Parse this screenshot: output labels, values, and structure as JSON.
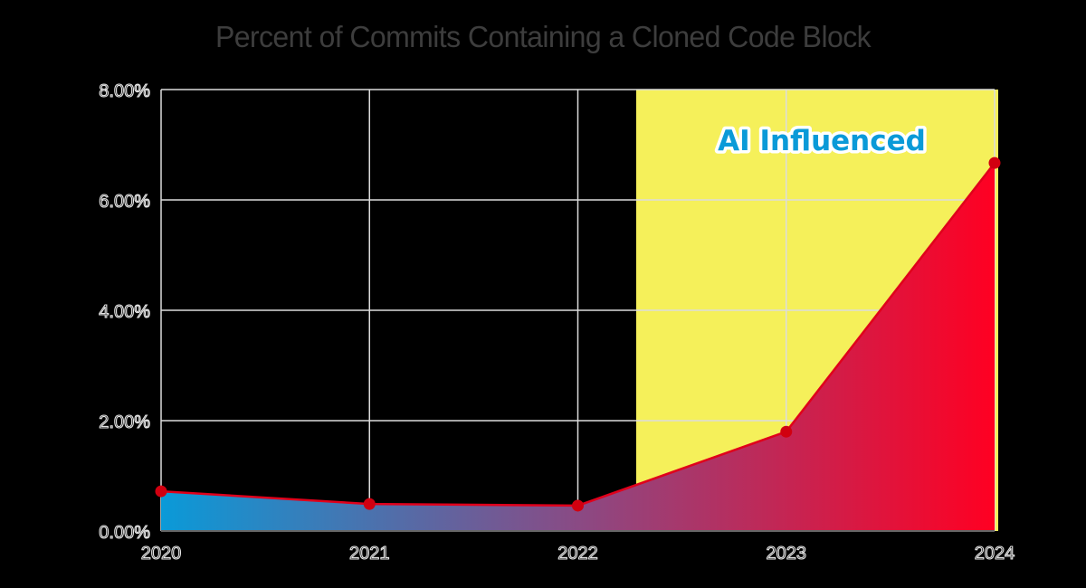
{
  "chart_data": {
    "type": "area",
    "title": "Percent of Commits Containing a Cloned Code Block",
    "xlabel": "",
    "ylabel": "",
    "categories": [
      "2020",
      "2021",
      "2022",
      "2023",
      "2024"
    ],
    "series": [
      {
        "name": "Percent of Commits Containing a Cloned Code Block",
        "values": [
          0.72,
          0.49,
          0.46,
          1.8,
          6.67
        ]
      }
    ],
    "ylim": [
      0,
      8
    ],
    "yticks": [
      "0.00%",
      "2.00%",
      "4.00%",
      "6.00%",
      "8.00%"
    ],
    "grid": true,
    "legend": "none",
    "annotations": [
      {
        "text": "AI Influenced",
        "region_start_x": 2022.28,
        "region_end_x": 2024,
        "region_color": "#f5f05a"
      }
    ]
  },
  "colors": {
    "background": "#000000",
    "grid": "#dcdcdc",
    "line": "#e0001b",
    "marker": "#d10010",
    "fill_start": "#0a9ad8",
    "fill_mid": "#8a4a84",
    "fill_end": "#ff0022",
    "highlight_region": "#f5f05a",
    "annotation_text": "#0a9ad8",
    "title": "#3d3d3d"
  }
}
